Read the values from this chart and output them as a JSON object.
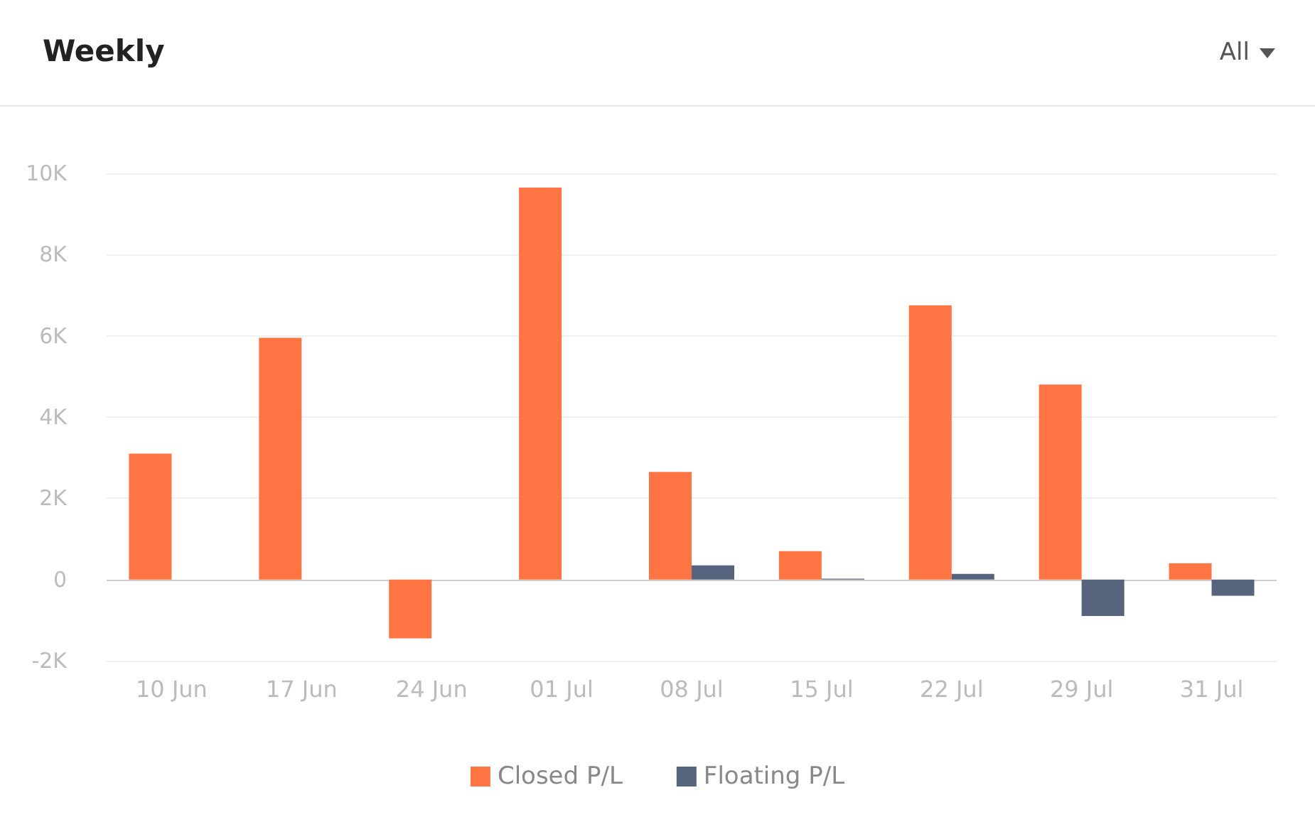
{
  "chart_data": {
    "type": "bar",
    "title": "Weekly",
    "annotations": [
      "All"
    ],
    "categories": [
      "10 Jun",
      "17 Jun",
      "24 Jun",
      "01 Jul",
      "08 Jul",
      "15 Jul",
      "22 Jul",
      "29 Jul",
      "31 Jul"
    ],
    "series": [
      {
        "name": "Closed P/L",
        "color": "#ff7443",
        "values": [
          3100,
          5950,
          -1450,
          9650,
          2650,
          700,
          6750,
          4800,
          400
        ]
      },
      {
        "name": "Floating P/L",
        "color": "#56647e",
        "values": [
          null,
          null,
          null,
          null,
          350,
          20,
          140,
          -900,
          -400
        ]
      }
    ],
    "ylim": [
      -2000,
      10000
    ],
    "yticks": [
      {
        "value": -2000,
        "label": "-2K"
      },
      {
        "value": 0,
        "label": "0"
      },
      {
        "value": 2000,
        "label": "2K"
      },
      {
        "value": 4000,
        "label": "4K"
      },
      {
        "value": 6000,
        "label": "6K"
      },
      {
        "value": 8000,
        "label": "8K"
      },
      {
        "value": 10000,
        "label": "10K"
      }
    ],
    "grid": "y",
    "legend": "bottom"
  }
}
